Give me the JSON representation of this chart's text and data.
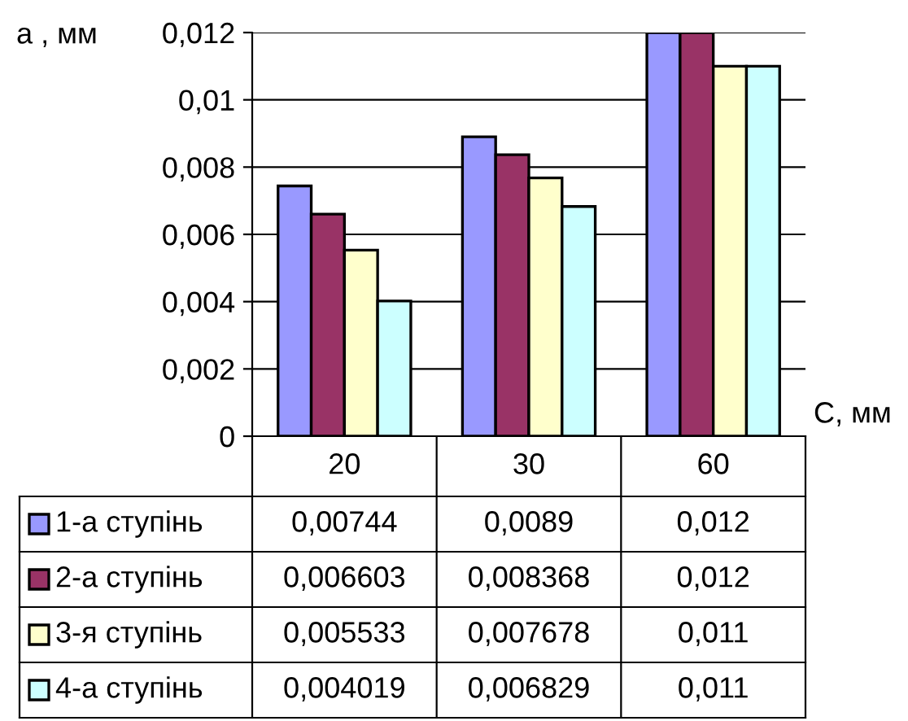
{
  "chart_data": {
    "type": "bar",
    "xlabel": "C, мм",
    "ylabel": "a , мм",
    "categories": [
      "20",
      "30",
      "60"
    ],
    "ylim": [
      0,
      0.012
    ],
    "yticks": [
      {
        "value": 0,
        "label": "0"
      },
      {
        "value": 0.002,
        "label": "0,002"
      },
      {
        "value": 0.004,
        "label": "0,004"
      },
      {
        "value": 0.006,
        "label": "0,006"
      },
      {
        "value": 0.008,
        "label": "0,008"
      },
      {
        "value": 0.01,
        "label": "0,01"
      },
      {
        "value": 0.012,
        "label": "0,012"
      }
    ],
    "grid": "y",
    "legend": "bottom",
    "series": [
      {
        "name": "1-а ступінь",
        "color": "#9999ff",
        "values": [
          0.00744,
          0.0089,
          0.012
        ],
        "value_labels": [
          "0,00744",
          "0,0089",
          "0,012"
        ]
      },
      {
        "name": "2-а ступінь",
        "color": "#993366",
        "values": [
          0.006603,
          0.008368,
          0.012
        ],
        "value_labels": [
          "0,006603",
          "0,008368",
          "0,012"
        ]
      },
      {
        "name": "3-я ступінь",
        "color": "#ffffcc",
        "values": [
          0.005533,
          0.007678,
          0.011
        ],
        "value_labels": [
          "0,005533",
          "0,007678",
          "0,011"
        ]
      },
      {
        "name": "4-а ступінь",
        "color": "#ccffff",
        "values": [
          0.004019,
          0.006829,
          0.011
        ],
        "value_labels": [
          "0,004019",
          "0,006829",
          "0,011"
        ]
      }
    ]
  }
}
